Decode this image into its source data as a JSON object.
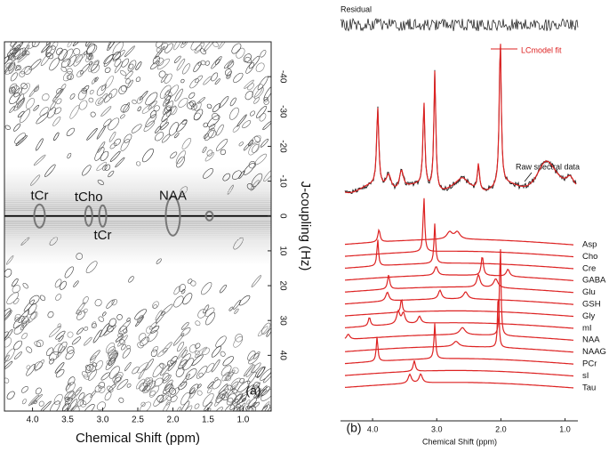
{
  "chart_data": [
    {
      "type": "contour",
      "xlabel": "Chemical Shift (ppm)",
      "ylabel": "J-coupling (Hz)",
      "xlim": [
        4.4,
        0.6
      ],
      "xticks": [
        {
          "value": 4,
          "label": "4.0"
        },
        {
          "value": 3.5,
          "label": "3.5"
        },
        {
          "value": 3,
          "label": "3.0"
        },
        {
          "value": 2.5,
          "label": "2.5"
        },
        {
          "value": 2,
          "label": "2.0"
        },
        {
          "value": 1.5,
          "label": "1.5"
        },
        {
          "value": 1,
          "label": "1.0"
        }
      ],
      "ylim": [
        -50,
        56
      ],
      "yticks": [
        -40,
        -30,
        -20,
        -10,
        0,
        10,
        20,
        30,
        40
      ],
      "annotations": [
        "tCr",
        "tCho",
        "tCr",
        "NAA"
      ],
      "panel_label": "(a)"
    },
    {
      "type": "spectra",
      "xlabel": "Chemical Shift (ppm)",
      "xlim": [
        4.5,
        0.8
      ],
      "xticks": [
        {
          "value": 4,
          "label": "4.0"
        },
        {
          "value": 3,
          "label": "3.0"
        },
        {
          "value": 2,
          "label": "2.0"
        },
        {
          "value": 1,
          "label": "1.0"
        }
      ],
      "annotations": [
        "Residual",
        "LCmodel fit",
        "Raw spectral data"
      ],
      "metabolites": [
        "Asp",
        "Cho",
        "Cre",
        "GABA",
        "Glu",
        "GSH",
        "Gly",
        "mI",
        "NAA",
        "NAAG",
        "PCr",
        "sI",
        "Tau"
      ],
      "panel_label": "(b)"
    }
  ]
}
